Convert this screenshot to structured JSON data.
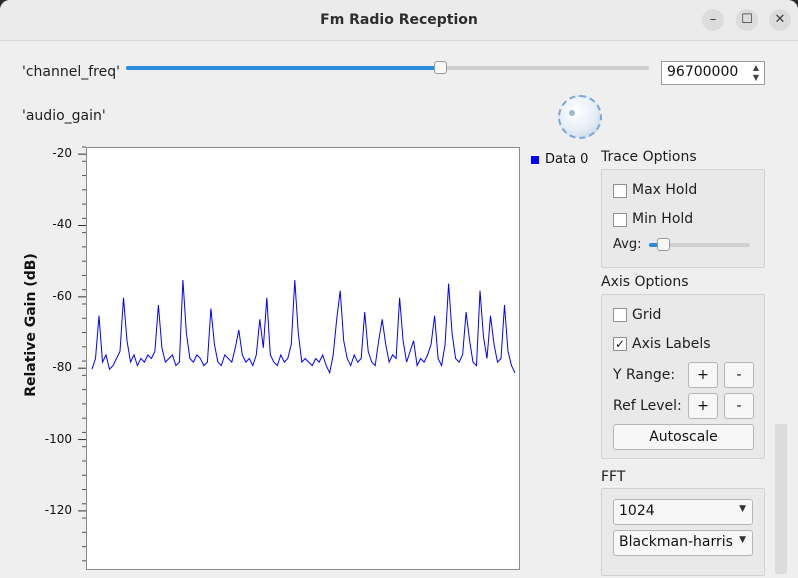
{
  "window": {
    "title": "Fm Radio Reception"
  },
  "controls": {
    "channel_freq": {
      "label": "'channel_freq'",
      "value": "96700000",
      "slider_fraction": 0.6
    },
    "audio_gain": {
      "label": "'audio_gain'"
    }
  },
  "legend": {
    "label": "Data 0",
    "color": "#0000ff"
  },
  "trace_options": {
    "title": "Trace Options",
    "max_hold": "Max Hold",
    "min_hold": "Min Hold",
    "avg": "Avg:"
  },
  "axis_options": {
    "title": "Axis Options",
    "grid": "Grid",
    "axis_labels": "Axis Labels",
    "y_range": "Y Range:",
    "ref_level": "Ref Level:",
    "plus": "+",
    "minus": "-",
    "autoscale": "Autoscale"
  },
  "fft": {
    "title": "FFT",
    "size": "1024",
    "window": "Blackman-harris"
  },
  "chart_data": {
    "type": "line",
    "ylabel": "Relative Gain (dB)",
    "xlabel": "",
    "yticks": [
      -20,
      -40,
      -60,
      -80,
      -100,
      -120
    ],
    "ylim": [
      -136,
      -18
    ],
    "series": [
      {
        "color": "#0000ff",
        "values": [
          -80,
          -77,
          -65,
          -78,
          -76,
          -80,
          -79,
          -77,
          -75,
          -60,
          -72,
          -78,
          -76,
          -79,
          -77,
          -78,
          -76,
          -77,
          -75,
          -62,
          -74,
          -78,
          -77,
          -76,
          -79,
          -78,
          -55,
          -70,
          -77,
          -78,
          -76,
          -77,
          -79,
          -78,
          -63,
          -73,
          -78,
          -79,
          -76,
          -77,
          -78,
          -74,
          -69,
          -76,
          -78,
          -77,
          -79,
          -76,
          -66,
          -74,
          -60,
          -76,
          -78,
          -79,
          -76,
          -78,
          -77,
          -73,
          -55,
          -70,
          -78,
          -77,
          -78,
          -79,
          -77,
          -78,
          -76,
          -79,
          -81,
          -76,
          -66,
          -58,
          -72,
          -77,
          -79,
          -76,
          -78,
          -77,
          -64,
          -75,
          -78,
          -79,
          -72,
          -66,
          -73,
          -78,
          -76,
          -77,
          -60,
          -72,
          -78,
          -75,
          -72,
          -79,
          -77,
          -78,
          -76,
          -73,
          -65,
          -77,
          -79,
          -73,
          -56,
          -70,
          -77,
          -78,
          -76,
          -64,
          -72,
          -78,
          -79,
          -58,
          -71,
          -77,
          -65,
          -73,
          -78,
          -77,
          -62,
          -75,
          -79,
          -81
        ]
      }
    ]
  }
}
